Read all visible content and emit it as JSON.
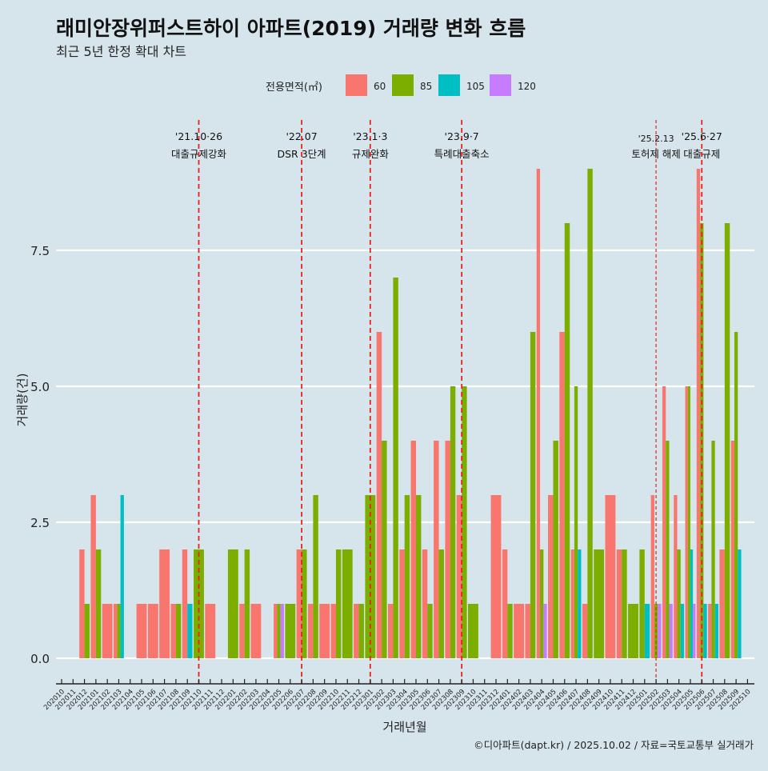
{
  "chart_data": {
    "type": "bar",
    "title": "래미안장위퍼스트하이 아파트(2019) 거래량 변화 흐름",
    "subtitle": "최근 5년 한정 확대 차트",
    "xlabel": "거래년월",
    "ylabel": "거래량(건)",
    "ylim": [
      -0.47,
      10
    ],
    "yticks": [
      0,
      2.5,
      5,
      7.5
    ],
    "ytick_labels": [
      "0.0",
      "2.5",
      "5.0",
      "7.5"
    ],
    "grid": true,
    "legend": {
      "title": "전용면적(㎡)",
      "placement": "top",
      "entries": [
        "60",
        "85",
        "105",
        "120"
      ]
    },
    "colors": {
      "60": "#f8766d",
      "85": "#7cae00",
      "105": "#00bfc4",
      "120": "#c77cff"
    },
    "categories": [
      "202010",
      "202011",
      "202012",
      "202101",
      "202102",
      "202103",
      "202104",
      "202105",
      "202106",
      "202107",
      "202108",
      "202109",
      "202110",
      "202111",
      "202112",
      "202201",
      "202202",
      "202203",
      "202204",
      "202205",
      "202206",
      "202207",
      "202208",
      "202209",
      "202210",
      "202211",
      "202212",
      "202301",
      "202302",
      "202303",
      "202304",
      "202305",
      "202306",
      "202307",
      "202308",
      "202309",
      "202310",
      "202311",
      "202312",
      "202401",
      "202402",
      "202403",
      "202404",
      "202405",
      "202406",
      "202407",
      "202408",
      "202409",
      "202410",
      "202411",
      "202412",
      "202501",
      "202502",
      "202503",
      "202504",
      "202505",
      "202506",
      "202507",
      "202508",
      "202509",
      "202510"
    ],
    "bars": [
      {},
      {},
      {
        "60": 2,
        "85": 1
      },
      {
        "60": 3,
        "85": 2
      },
      {
        "60": 1
      },
      {
        "60": 1,
        "85": 1,
        "105": 3
      },
      {},
      {
        "60": 1
      },
      {
        "60": 1
      },
      {
        "60": 2
      },
      {
        "60": 1,
        "85": 1
      },
      {
        "60": 2,
        "105": 1
      },
      {
        "85": 2
      },
      {
        "60": 1
      },
      {},
      {
        "85": 2
      },
      {
        "60": 1,
        "85": 2
      },
      {
        "60": 1
      },
      {},
      {
        "60": 1,
        "85": 1,
        "120": 1
      },
      {
        "85": 1
      },
      {
        "60": 2,
        "85": 2
      },
      {
        "60": 1,
        "85": 3
      },
      {
        "60": 1
      },
      {
        "60": 1,
        "85": 2
      },
      {
        "85": 2
      },
      {
        "60": 1,
        "85": 1
      },
      {
        "85": 3
      },
      {
        "60": 6,
        "85": 4
      },
      {
        "60": 1,
        "85": 7
      },
      {
        "60": 2,
        "85": 3
      },
      {
        "60": 4,
        "85": 3
      },
      {
        "60": 2,
        "85": 1
      },
      {
        "60": 4,
        "85": 2
      },
      {
        "60": 4,
        "85": 5
      },
      {
        "60": 3,
        "85": 5
      },
      {
        "85": 1
      },
      {},
      {
        "60": 3
      },
      {
        "60": 2,
        "85": 1
      },
      {
        "60": 1
      },
      {
        "60": 1,
        "85": 6
      },
      {
        "60": 9,
        "85": 2,
        "120": 1
      },
      {
        "60": 3,
        "85": 4
      },
      {
        "60": 6,
        "85": 8
      },
      {
        "60": 2,
        "85": 5,
        "105": 2
      },
      {
        "60": 1,
        "85": 9
      },
      {
        "85": 2
      },
      {
        "60": 3
      },
      {
        "60": 2,
        "85": 2
      },
      {
        "85": 1
      },
      {
        "85": 2,
        "105": 1
      },
      {
        "60": 3,
        "85": 1,
        "120": 1
      },
      {
        "60": 5,
        "85": 4,
        "120": 1
      },
      {
        "60": 3,
        "85": 2,
        "105": 1
      },
      {
        "60": 5,
        "85": 5,
        "105": 2,
        "120": 1
      },
      {
        "60": 9,
        "85": 8,
        "105": 1
      },
      {
        "60": 1,
        "85": 4,
        "105": 1
      },
      {
        "60": 2,
        "85": 8
      },
      {
        "60": 4,
        "85": 6,
        "105": 2
      },
      {}
    ],
    "annotations": [
      {
        "at": "202110",
        "date": "'21.10·26",
        "label": "대출규제강화"
      },
      {
        "at": "202207",
        "date": "'22.07",
        "label": "DSR 3단계"
      },
      {
        "at": "202301",
        "date": "'23.1·3",
        "label": "규제완화"
      },
      {
        "at": "202309",
        "date": "'23.9·7",
        "label": "특례대출축소"
      },
      {
        "at": "202502",
        "date": "'25.2.13",
        "label": "토허제 해제",
        "thin": true
      },
      {
        "at": "202506",
        "date": "'25.6·27",
        "label": "대출규제"
      }
    ],
    "caption": "©디아파트(dapt.kr) / 2025.10.02 / 자료=국토교통부 실거래가"
  }
}
